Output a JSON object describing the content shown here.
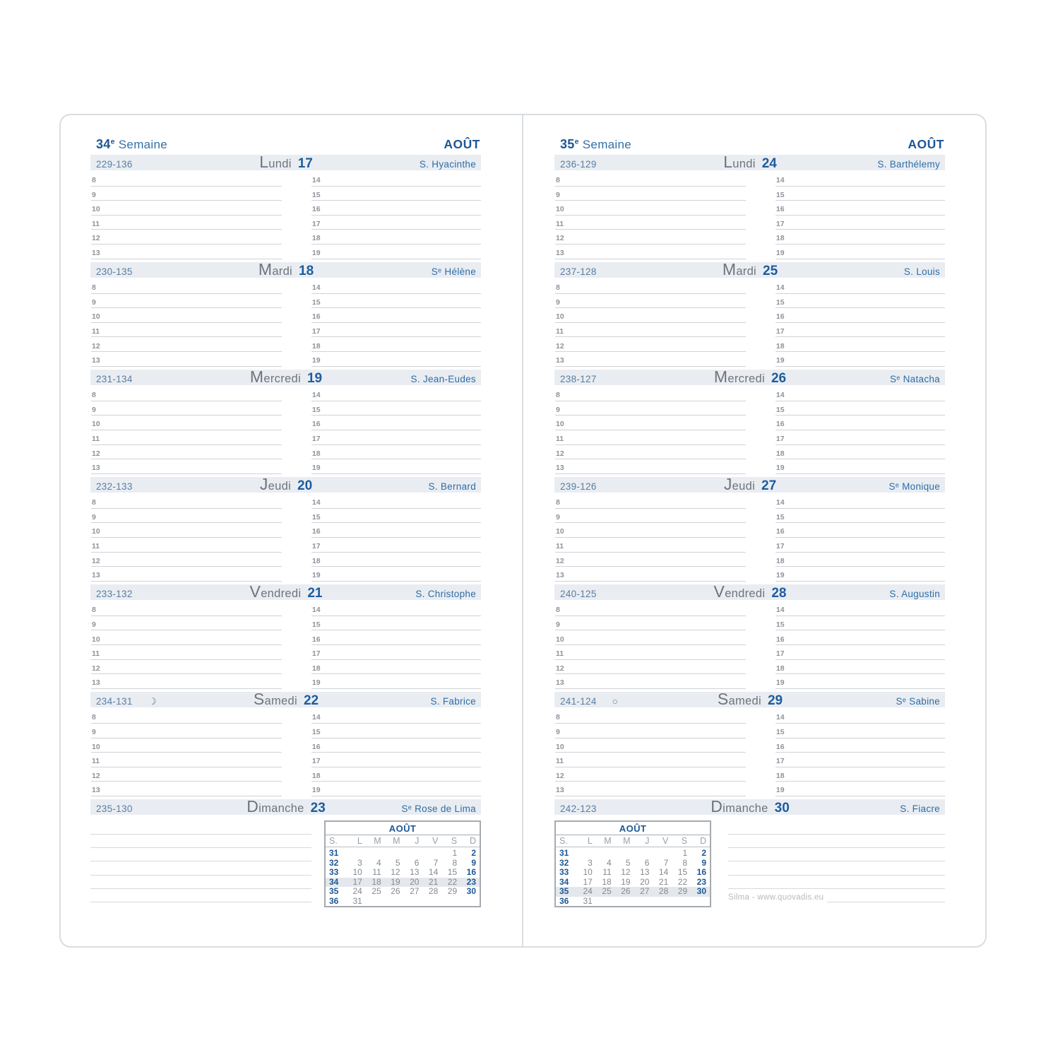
{
  "colors": {
    "accent_dark": "#1c5795",
    "accent_blue": "#3270a8",
    "day_number_blue": "#1d5c9e",
    "band_background": "#e9edf2",
    "highlight_row": "#e4e8ec"
  },
  "hours": {
    "left": [
      "8",
      "9",
      "10",
      "11",
      "12",
      "13"
    ],
    "right": [
      "14",
      "15",
      "16",
      "17",
      "18",
      "19"
    ]
  },
  "pages": [
    {
      "side": "left",
      "week_number": "34",
      "week_ordinal": "e",
      "week_label": "Semaine",
      "month": "AOÛT",
      "highlight_week": "34",
      "calendar_position": "right",
      "credit": null,
      "days": [
        {
          "code": "229-136",
          "name": "Lundi",
          "number": "17",
          "saint": "S. Hyacinthe",
          "has_hours": true
        },
        {
          "code": "230-135",
          "name": "Mardi",
          "number": "18",
          "saint": "Sᵉ Hélène",
          "has_hours": true
        },
        {
          "code": "231-134",
          "name": "Mercredi",
          "number": "19",
          "saint": "S. Jean-Eudes",
          "has_hours": true
        },
        {
          "code": "232-133",
          "name": "Jeudi",
          "number": "20",
          "saint": "S. Bernard",
          "has_hours": true
        },
        {
          "code": "233-132",
          "name": "Vendredi",
          "number": "21",
          "saint": "S. Christophe",
          "has_hours": true
        },
        {
          "code": "234-131",
          "moon": "☽",
          "name": "Samedi",
          "number": "22",
          "saint": "S. Fabrice",
          "has_hours": true
        },
        {
          "code": "235-130",
          "name": "Dimanche",
          "number": "23",
          "saint": "Sᵉ Rose de Lima",
          "has_hours": false
        }
      ]
    },
    {
      "side": "right",
      "week_number": "35",
      "week_ordinal": "e",
      "week_label": "Semaine",
      "month": "AOÛT",
      "highlight_week": "35",
      "calendar_position": "left",
      "credit": "Silma - www.quovadis.eu",
      "days": [
        {
          "code": "236-129",
          "name": "Lundi",
          "number": "24",
          "saint": "S. Barthélemy",
          "has_hours": true
        },
        {
          "code": "237-128",
          "name": "Mardi",
          "number": "25",
          "saint": "S. Louis",
          "has_hours": true
        },
        {
          "code": "238-127",
          "name": "Mercredi",
          "number": "26",
          "saint": "Sᵉ Natacha",
          "has_hours": true
        },
        {
          "code": "239-126",
          "name": "Jeudi",
          "number": "27",
          "saint": "Sᵉ Monique",
          "has_hours": true
        },
        {
          "code": "240-125",
          "name": "Vendredi",
          "number": "28",
          "saint": "S. Augustin",
          "has_hours": true
        },
        {
          "code": "241-124",
          "moon": "○",
          "name": "Samedi",
          "number": "29",
          "saint": "Sᵉ Sabine",
          "has_hours": true
        },
        {
          "code": "242-123",
          "name": "Dimanche",
          "number": "30",
          "saint": "S. Fiacre",
          "has_hours": false
        }
      ]
    }
  ],
  "mini_calendar": {
    "title": "AOÛT",
    "col_headers": [
      "S.",
      "L",
      "M",
      "M",
      "J",
      "V",
      "S",
      "D"
    ],
    "rows": [
      {
        "week": "31",
        "days": [
          "",
          "",
          "",
          "",
          "",
          "1",
          "2"
        ]
      },
      {
        "week": "32",
        "days": [
          "3",
          "4",
          "5",
          "6",
          "7",
          "8",
          "9"
        ]
      },
      {
        "week": "33",
        "days": [
          "10",
          "11",
          "12",
          "13",
          "14",
          "15",
          "16"
        ]
      },
      {
        "week": "34",
        "days": [
          "17",
          "18",
          "19",
          "20",
          "21",
          "22",
          "23"
        ]
      },
      {
        "week": "35",
        "days": [
          "24",
          "25",
          "26",
          "27",
          "28",
          "29",
          "30"
        ]
      },
      {
        "week": "36",
        "days": [
          "31",
          "",
          "",
          "",
          "",
          "",
          ""
        ]
      }
    ]
  }
}
